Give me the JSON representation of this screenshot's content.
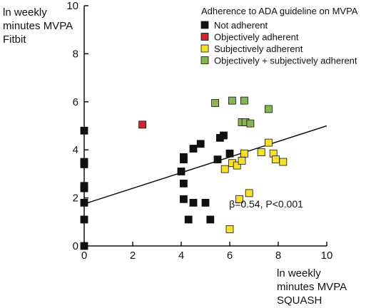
{
  "chart_data": {
    "type": "scatter",
    "ylabel_lines": [
      "ln weekly",
      "minutes MVPA",
      "Fitbit"
    ],
    "xlabel_lines": [
      "ln weekly",
      "minutes MVPA",
      "SQUASH"
    ],
    "xlim": [
      0,
      10
    ],
    "ylim": [
      0,
      10
    ],
    "xticks": [
      "0",
      "2",
      "4",
      "6",
      "8",
      "10"
    ],
    "yticks": [
      "0",
      "2",
      "4",
      "6",
      "8",
      "10"
    ],
    "legend_title": "Adherence to ADA guideline on MVPA",
    "legend_position": "top-right",
    "series": [
      {
        "name": "Not adherent",
        "color": "#111111",
        "points": [
          [
            0,
            0
          ],
          [
            0,
            1.1
          ],
          [
            0,
            1.8
          ],
          [
            0,
            2.4
          ],
          [
            0,
            2.5
          ],
          [
            0,
            3.4
          ],
          [
            0,
            3.5
          ],
          [
            0,
            4.8
          ],
          [
            4.0,
            3.1
          ],
          [
            4.1,
            3.6
          ],
          [
            4.1,
            3.7
          ],
          [
            4.1,
            2.6
          ],
          [
            4.1,
            1.95
          ],
          [
            4.3,
            1.1
          ],
          [
            4.5,
            4.05
          ],
          [
            4.5,
            1.8
          ],
          [
            4.8,
            4.25
          ],
          [
            5.0,
            1.8
          ],
          [
            5.2,
            1.1
          ],
          [
            5.5,
            3.6
          ],
          [
            5.6,
            4.5
          ],
          [
            5.75,
            4.6
          ],
          [
            6.0,
            3.85
          ]
        ]
      },
      {
        "name": "Objectively adherent",
        "color": "#d0262b",
        "points": [
          [
            2.4,
            5.05
          ]
        ]
      },
      {
        "name": "Subjectively adherent",
        "color": "#f5e12a",
        "points": [
          [
            5.8,
            3.2
          ],
          [
            6.1,
            3.45
          ],
          [
            6.3,
            3.35
          ],
          [
            6.5,
            3.55
          ],
          [
            6.6,
            3.85
          ],
          [
            6.4,
            1.95
          ],
          [
            6.8,
            2.2
          ],
          [
            6.0,
            0.7
          ],
          [
            7.3,
            3.9
          ],
          [
            7.6,
            4.3
          ],
          [
            7.8,
            3.85
          ],
          [
            7.9,
            3.6
          ],
          [
            8.2,
            3.5
          ]
        ]
      },
      {
        "name": "Objectively + subjectively adherent",
        "color": "#86b554",
        "points": [
          [
            5.4,
            5.95
          ],
          [
            6.1,
            6.05
          ],
          [
            6.6,
            6.05
          ],
          [
            6.5,
            5.15
          ],
          [
            6.65,
            5.15
          ],
          [
            6.85,
            5.1
          ],
          [
            7.6,
            5.7
          ]
        ]
      }
    ],
    "regression_line": {
      "x": [
        0,
        10
      ],
      "y": [
        1.75,
        5.0
      ]
    },
    "annotation": "β=0.54, P<0.001",
    "annotation_pos": [
      7.5,
      1.75
    ]
  }
}
